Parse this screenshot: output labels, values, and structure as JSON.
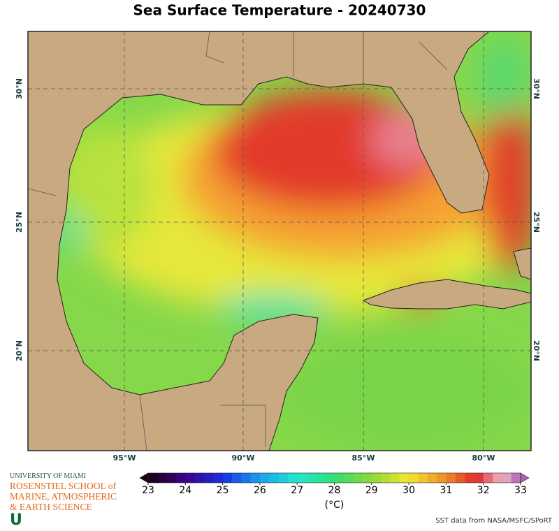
{
  "header": {
    "title": "Sea Surface Temperature - 20240730"
  },
  "map": {
    "lon_ticks": [
      "95°W",
      "90°W",
      "85°W",
      "80°W"
    ],
    "lat_ticks": [
      "30°N",
      "25°N",
      "20°N"
    ]
  },
  "colorbar": {
    "range": [
      23,
      33
    ],
    "ticks": [
      23,
      24,
      25,
      26,
      27,
      28,
      29,
      30,
      31,
      32,
      33
    ],
    "label": "(°C)"
  },
  "footer": {
    "university": "UNIVERSITY OF MIAMI",
    "school": [
      "ROSENSTIEL SCHOOL of",
      "MARINE, ATMOSPHERIC",
      "& EARTH SCIENCE"
    ],
    "credit": "SST data from NASA/MSFC/SPoRT"
  }
}
